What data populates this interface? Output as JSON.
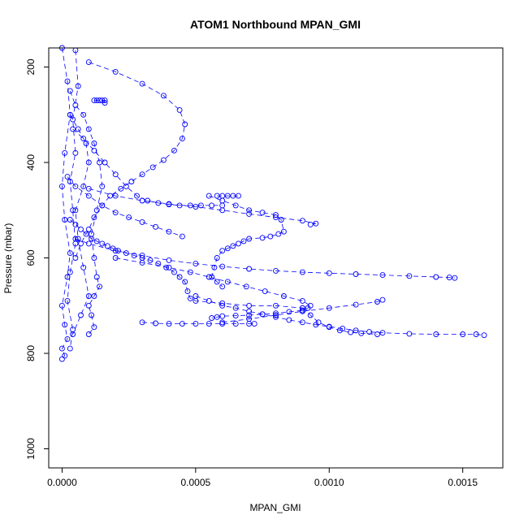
{
  "chart_data": {
    "type": "scatter",
    "title": "ATOM1 Northbound MPAN_GMI",
    "xlabel": "MPAN_GMI",
    "ylabel": "Pressure (mbar)",
    "xlim": [
      -5e-05,
      0.00165
    ],
    "ylim": [
      1040,
      160
    ],
    "y_reversed": true,
    "x_ticks": [
      0.0,
      0.0005,
      0.001,
      0.0015
    ],
    "x_tick_labels": [
      "0.0000",
      "0.0005",
      "0.0010",
      "0.0015"
    ],
    "y_ticks": [
      200,
      400,
      600,
      800,
      1000
    ],
    "y_tick_labels": [
      "200",
      "400",
      "600",
      "800",
      "1000"
    ],
    "grid": false,
    "series_color": "#0000ff",
    "marker": "open-circle",
    "series": [
      {
        "x": [
          0.0,
          2e-05,
          3e-05,
          1e-05,
          0.0,
          1e-05,
          3e-05,
          2e-05,
          0.0,
          1e-05,
          2e-05,
          0.0,
          1e-05,
          0.0
        ],
        "y": [
          160,
          230,
          300,
          380,
          450,
          520,
          590,
          640,
          700,
          740,
          770,
          790,
          805,
          812
        ]
      },
      {
        "x": [
          5e-05,
          6e-05,
          4e-05,
          5e-05,
          3e-05,
          4e-05,
          5e-05,
          3e-05,
          2e-05,
          4e-05,
          3e-05
        ],
        "y": [
          165,
          240,
          310,
          380,
          440,
          500,
          570,
          630,
          690,
          750,
          790
        ]
      },
      {
        "x": [
          3e-05,
          5e-05,
          8e-05,
          0.0001,
          0.00012,
          0.00014,
          0.00015,
          0.00013,
          0.00011,
          0.00012,
          0.00013,
          0.00014,
          0.00012,
          0.0001,
          0.00011,
          0.00012,
          0.0001
        ],
        "y": [
          250,
          280,
          300,
          330,
          360,
          400,
          450,
          500,
          550,
          600,
          640,
          660,
          680,
          700,
          720,
          745,
          760
        ]
      },
      {
        "x": [
          0.00012,
          0.00013,
          0.00014,
          0.00015,
          0.00016,
          0.00016
        ],
        "y": [
          270,
          270,
          270,
          270,
          270,
          275
        ]
      },
      {
        "x": [
          0.0001,
          0.0002,
          0.0003,
          0.00038,
          0.00044,
          0.00046,
          0.00045,
          0.00042,
          0.00038,
          0.00034,
          0.0003,
          0.00026,
          0.00022,
          0.00018,
          0.00015,
          0.00012,
          0.0001,
          7e-05,
          5e-05
        ],
        "y": [
          190,
          210,
          235,
          260,
          290,
          320,
          350,
          375,
          395,
          410,
          425,
          440,
          455,
          470,
          490,
          515,
          540,
          570,
          600
        ]
      },
      {
        "x": [
          3e-05,
          5e-05,
          7e-05,
          9e-05,
          0.00011,
          0.00013,
          0.00015,
          0.00017,
          0.00019,
          0.00021,
          0.00024,
          0.00027,
          0.0003,
          0.00033,
          0.00036,
          0.00039,
          0.00042,
          0.00044,
          0.00046,
          0.00047,
          0.00048,
          0.0005,
          0.0006,
          0.0007,
          0.0008,
          0.0009
        ],
        "y": [
          520,
          530,
          540,
          550,
          560,
          565,
          570,
          575,
          580,
          585,
          590,
          595,
          600,
          605,
          612,
          620,
          630,
          640,
          650,
          670,
          685,
          690,
          695,
          700,
          700,
          705
        ]
      },
      {
        "x": [
          4e-05,
          8e-05,
          0.00012,
          0.00016,
          0.0002,
          0.00024,
          0.00028,
          0.00032,
          0.00036,
          0.0004,
          0.00044,
          0.00048,
          0.00052,
          0.00056,
          0.0006
        ],
        "y": [
          330,
          350,
          375,
          400,
          425,
          450,
          470,
          480,
          485,
          488,
          490,
          490,
          490,
          490,
          490
        ]
      },
      {
        "x": [
          0.00055,
          0.0006,
          0.00065,
          0.0007,
          0.00075,
          0.0008,
          0.00082,
          0.00083,
          0.00081,
          0.00078,
          0.00075,
          0.0007,
          0.00068,
          0.00066,
          0.00064,
          0.00062,
          0.0006,
          0.00058,
          0.00057,
          0.00056,
          0.00058,
          0.0006
        ],
        "y": [
          470,
          480,
          490,
          500,
          505,
          510,
          520,
          545,
          550,
          555,
          558,
          560,
          565,
          570,
          575,
          580,
          585,
          600,
          620,
          640,
          650,
          660
        ]
      },
      {
        "x": [
          0.0002,
          0.0003,
          0.0004,
          0.00048,
          0.00055,
          0.00062,
          0.00069,
          0.00076,
          0.00083,
          0.0009,
          0.00093,
          0.00092,
          0.0009,
          0.00085,
          0.0008,
          0.00075,
          0.0007,
          0.00065,
          0.0006,
          0.00058,
          0.00056
        ],
        "y": [
          600,
          610,
          620,
          630,
          640,
          650,
          660,
          670,
          680,
          690,
          700,
          705,
          710,
          713,
          716,
          718,
          720,
          721,
          722,
          724,
          726
        ]
      },
      {
        "x": [
          5e-05,
          0.0001,
          0.0002,
          0.0003,
          0.0004,
          0.0005,
          0.0006,
          0.0007,
          0.0008,
          0.0009,
          0.001,
          0.0011,
          0.0012,
          0.0013,
          0.0014,
          0.00145,
          0.00147
        ],
        "y": [
          560,
          570,
          585,
          595,
          605,
          612,
          618,
          623,
          627,
          630,
          632,
          634,
          636,
          638,
          640,
          641,
          642
        ]
      },
      {
        "x": [
          0.0001,
          0.0002,
          0.0003,
          0.0004,
          0.0005,
          0.0006,
          0.0007,
          0.0008,
          0.0009,
          0.00095,
          0.00093
        ],
        "y": [
          455,
          470,
          480,
          487,
          493,
          500,
          508,
          515,
          522,
          528,
          530
        ]
      },
      {
        "x": [
          0.0005,
          0.00055,
          0.0006,
          0.00065,
          0.0007,
          0.00075,
          0.0008,
          0.00085,
          0.0009,
          0.00095,
          0.001,
          0.00105,
          0.0011,
          0.00115,
          0.0012,
          0.0013,
          0.0014,
          0.0015,
          0.00155,
          0.00158
        ],
        "y": [
          680,
          690,
          700,
          705,
          712,
          718,
          724,
          730,
          735,
          740,
          744,
          748,
          752,
          755,
          757,
          759,
          760,
          760,
          760,
          762
        ]
      },
      {
        "x": [
          0.0009,
          0.00093,
          0.00096,
          0.001,
          0.00104,
          0.00108,
          0.00112,
          0.00118
        ],
        "y": [
          705,
          720,
          735,
          745,
          752,
          756,
          758,
          760
        ]
      },
      {
        "x": [
          0.0003,
          0.00035,
          0.0004,
          0.00045,
          0.0005,
          0.00055,
          0.0006,
          0.00065,
          0.0007,
          0.00072
        ],
        "y": [
          735,
          737,
          738,
          738,
          738,
          738,
          738,
          738,
          738,
          738
        ]
      },
      {
        "x": [
          0.0006,
          0.0007,
          0.0008,
          0.0009,
          0.001,
          0.0011,
          0.00118,
          0.0012
        ],
        "y": [
          735,
          728,
          720,
          712,
          705,
          698,
          692,
          688
        ]
      },
      {
        "x": [
          0.00058,
          0.0006,
          0.00062,
          0.00064,
          0.00066
        ],
        "y": [
          470,
          470,
          470,
          470,
          470
        ]
      },
      {
        "x": [
          3e-05,
          6e-05,
          9e-05,
          0.0001,
          8e-05,
          5e-05,
          6e-05,
          8e-05,
          0.0001,
          7e-05,
          4e-05
        ],
        "y": [
          300,
          330,
          360,
          400,
          450,
          500,
          560,
          620,
          680,
          720,
          760
        ]
      },
      {
        "x": [
          2e-05,
          5e-05,
          0.0001,
          0.00015,
          0.0002,
          0.00025,
          0.0003,
          0.00035,
          0.0004,
          0.00045
        ],
        "y": [
          430,
          450,
          470,
          490,
          505,
          515,
          525,
          535,
          545,
          555
        ]
      }
    ]
  }
}
